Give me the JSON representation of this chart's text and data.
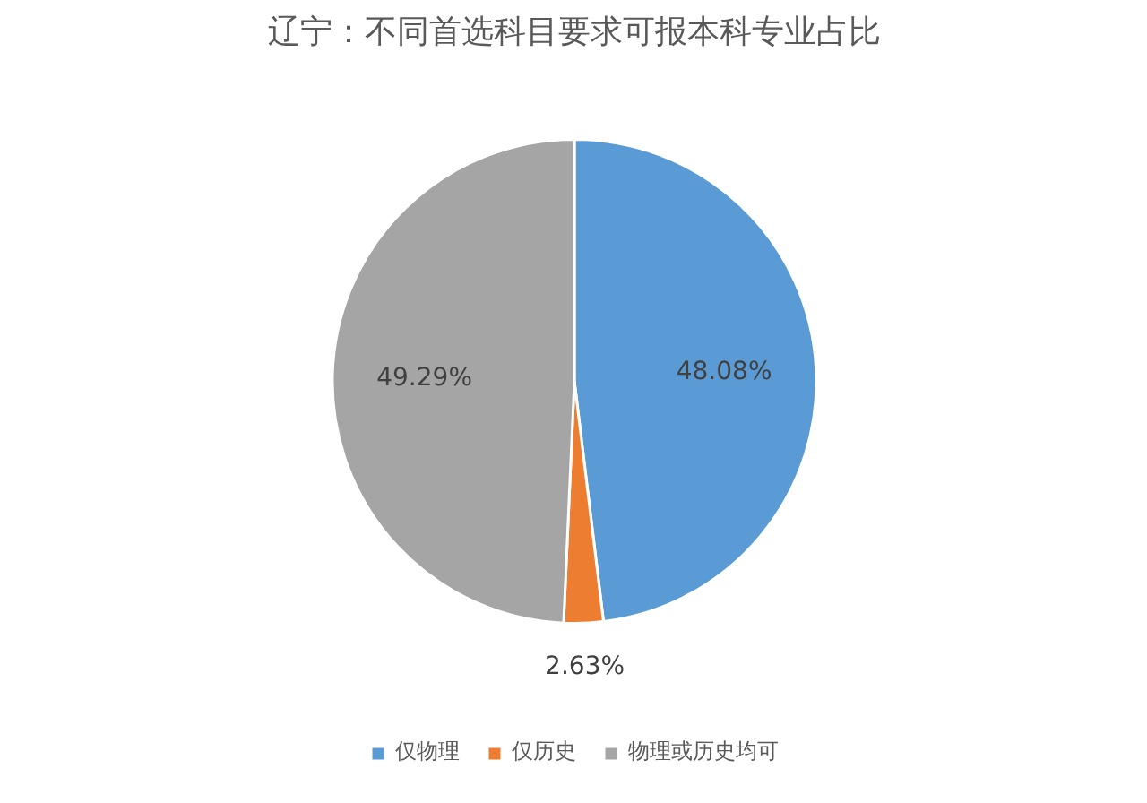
{
  "chart_data": {
    "type": "pie",
    "title": "辽宁：不同首选科目要求可报本科专业占比",
    "categories": [
      "仅物理",
      "仅历史",
      "物理或历史均可"
    ],
    "values": [
      48.08,
      2.63,
      49.29
    ],
    "colors": [
      "#5b9bd5",
      "#ed7d31",
      "#a5a5a5"
    ],
    "value_labels": [
      "48.08%",
      "2.63%",
      "49.29%"
    ],
    "legend": "bottom"
  }
}
